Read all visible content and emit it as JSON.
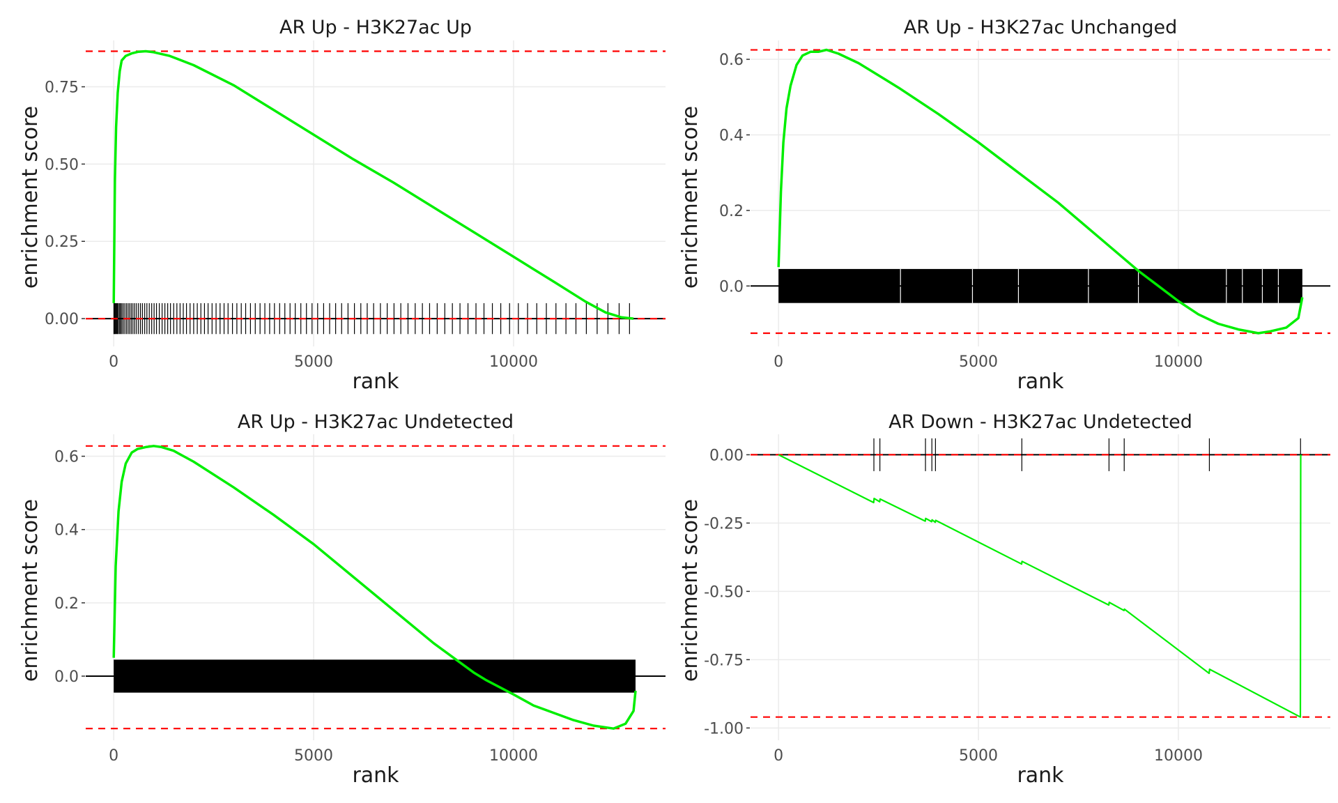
{
  "chart_data": [
    {
      "type": "line",
      "title": "AR Up - H3K27ac Up",
      "xlabel": "rank",
      "ylabel": "enrichment score",
      "xlim": [
        -700,
        13800
      ],
      "ylim": [
        -0.09,
        0.9
      ],
      "x_ticks": [
        0,
        5000,
        10000
      ],
      "x_tick_labels": [
        "0",
        "5000",
        "10000"
      ],
      "y_ticks": [
        0,
        0.25,
        0.5,
        0.75
      ],
      "y_tick_labels": [
        "0.00",
        "0.25",
        "0.50",
        "0.75"
      ],
      "max_es": 0.865,
      "min_es": 0.0,
      "zero_line": 0,
      "series": [
        {
          "x": [
            0,
            30,
            60,
            100,
            150,
            200,
            300,
            450,
            600,
            800,
            1000,
            1400,
            2000,
            3000,
            4000,
            5000,
            6000,
            7000,
            8000,
            9000,
            10000,
            11000,
            11800,
            12300,
            12700,
            13000
          ],
          "y": [
            0.05,
            0.45,
            0.62,
            0.73,
            0.8,
            0.835,
            0.85,
            0.858,
            0.863,
            0.865,
            0.862,
            0.85,
            0.82,
            0.755,
            0.675,
            0.595,
            0.515,
            0.44,
            0.36,
            0.28,
            0.2,
            0.12,
            0.055,
            0.02,
            0.004,
            0.0
          ]
        }
      ],
      "hits": {
        "band": [
          -0.05,
          0.05
        ],
        "ranks": [
          5,
          20,
          38,
          55,
          78,
          95,
          120,
          150,
          175,
          205,
          240,
          280,
          320,
          360,
          400,
          440,
          480,
          525,
          570,
          620,
          670,
          720,
          775,
          830,
          890,
          950,
          1010,
          1070,
          1140,
          1210,
          1280,
          1350,
          1420,
          1500,
          1580,
          1660,
          1740,
          1820,
          1910,
          2000,
          2090,
          2180,
          2270,
          2360,
          2460,
          2560,
          2660,
          2760,
          2860,
          2970,
          3080,
          3190,
          3300,
          3420,
          3540,
          3660,
          3780,
          3900,
          4020,
          4150,
          4280,
          4410,
          4540,
          4680,
          4820,
          4960,
          5100,
          5250,
          5400,
          5550,
          5700,
          5860,
          6020,
          6180,
          6340,
          6500,
          6670,
          6840,
          7010,
          7180,
          7360,
          7540,
          7720,
          7900,
          8090,
          8280,
          8470,
          8660,
          8860,
          9060,
          9260,
          9470,
          9680,
          9900,
          10120,
          10350,
          10580,
          10820,
          11060,
          11310,
          11560,
          11820,
          12090,
          12360,
          12640,
          12900
        ]
      }
    },
    {
      "type": "line",
      "title": "AR Up - H3K27ac Unchanged",
      "xlabel": "rank",
      "ylabel": "enrichment score",
      "xlim": [
        -700,
        13800
      ],
      "ylim": [
        -0.16,
        0.65
      ],
      "x_ticks": [
        0,
        5000,
        10000
      ],
      "x_tick_labels": [
        "0",
        "5000",
        "10000"
      ],
      "y_ticks": [
        0,
        0.2,
        0.4,
        0.6
      ],
      "y_tick_labels": [
        "0.0",
        "0.2",
        "0.4",
        "0.6"
      ],
      "max_es": 0.625,
      "min_es": -0.125,
      "zero_line": 0,
      "series": [
        {
          "x": [
            0,
            60,
            120,
            200,
            300,
            450,
            600,
            800,
            1000,
            1200,
            1500,
            2000,
            3000,
            4000,
            5000,
            6000,
            7000,
            8000,
            9000,
            9500,
            10000,
            10500,
            11000,
            11500,
            12000,
            12300,
            12700,
            13000,
            13100
          ],
          "y": [
            0.05,
            0.25,
            0.38,
            0.47,
            0.53,
            0.585,
            0.61,
            0.62,
            0.62,
            0.625,
            0.615,
            0.59,
            0.525,
            0.455,
            0.38,
            0.3,
            0.22,
            0.13,
            0.04,
            0.0,
            -0.04,
            -0.075,
            -0.1,
            -0.115,
            -0.125,
            -0.12,
            -0.11,
            -0.085,
            -0.03
          ]
        }
      ],
      "hits": {
        "band": [
          -0.045,
          0.045
        ],
        "dense": [
          0,
          13100
        ],
        "gap_ranks": [
          3050,
          4850,
          6000,
          7750,
          9000,
          11200,
          11600,
          12100,
          12500
        ]
      }
    },
    {
      "type": "line",
      "title": "AR Up - H3K27ac Undetected",
      "xlabel": "rank",
      "ylabel": "enrichment score",
      "xlim": [
        -700,
        13800
      ],
      "ylim": [
        -0.175,
        0.66
      ],
      "x_ticks": [
        0,
        5000,
        10000
      ],
      "x_tick_labels": [
        "0",
        "5000",
        "10000"
      ],
      "y_ticks": [
        0,
        0.2,
        0.4,
        0.6
      ],
      "y_tick_labels": [
        "0.0",
        "0.2",
        "0.4",
        "0.6"
      ],
      "max_es": 0.628,
      "min_es": -0.143,
      "zero_line": 0,
      "series": [
        {
          "x": [
            0,
            50,
            120,
            200,
            300,
            450,
            600,
            800,
            1000,
            1200,
            1500,
            2000,
            3000,
            4000,
            5000,
            6000,
            7000,
            8000,
            9000,
            9300,
            10000,
            10500,
            11000,
            11500,
            12000,
            12500,
            12800,
            13000,
            13050
          ],
          "y": [
            0.05,
            0.3,
            0.45,
            0.53,
            0.58,
            0.61,
            0.62,
            0.625,
            0.628,
            0.625,
            0.615,
            0.585,
            0.515,
            0.44,
            0.36,
            0.27,
            0.18,
            0.09,
            0.01,
            -0.01,
            -0.05,
            -0.08,
            -0.1,
            -0.12,
            -0.135,
            -0.143,
            -0.13,
            -0.095,
            -0.04
          ]
        }
      ],
      "hits": {
        "band": [
          -0.045,
          0.045
        ],
        "dense": [
          0,
          13050
        ],
        "gap_ranks": []
      }
    },
    {
      "type": "line",
      "title": "AR Down - H3K27ac Undetected",
      "xlabel": "rank",
      "ylabel": "enrichment score",
      "xlim": [
        -700,
        13800
      ],
      "ylim": [
        -1.045,
        0.075
      ],
      "x_ticks": [
        0,
        5000,
        10000
      ],
      "x_tick_labels": [
        "0",
        "5000",
        "10000"
      ],
      "y_ticks": [
        0,
        -0.25,
        -0.5,
        -0.75,
        -1.0
      ],
      "y_tick_labels": [
        "0.00",
        "-0.25",
        "-0.50",
        "-0.75",
        "-1.00"
      ],
      "max_es": 0.0,
      "min_es": -0.96,
      "zero_line": 0,
      "series": [
        {
          "x": [
            0,
            2380,
            2390,
            2530,
            2540,
            3670,
            3680,
            3830,
            3840,
            3920,
            3930,
            6080,
            6090,
            8260,
            8270,
            8640,
            8650,
            10770,
            10780,
            13050,
            13060
          ],
          "y": [
            0,
            -0.175,
            -0.16,
            -0.172,
            -0.162,
            -0.243,
            -0.233,
            -0.245,
            -0.238,
            -0.247,
            -0.24,
            -0.4,
            -0.39,
            -0.55,
            -0.54,
            -0.57,
            -0.565,
            -0.8,
            -0.785,
            -0.96,
            0
          ]
        }
      ],
      "hits": {
        "band": [
          -0.06,
          0.06
        ],
        "ranks": [
          2385,
          2535,
          3675,
          3835,
          3925,
          6085,
          8265,
          8645,
          10775,
          13055
        ]
      }
    }
  ]
}
